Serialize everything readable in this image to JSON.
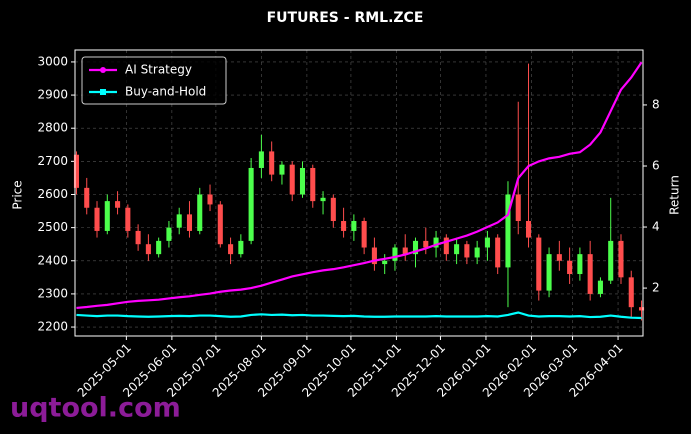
{
  "chart_data": {
    "type": "candlestick",
    "title": "FUTURES - RML.ZCE",
    "ylabel": "Price",
    "y2label": "Return",
    "watermark": "uqtool.com",
    "x": [
      "2025-03-28",
      "2025-04-04",
      "2025-04-11",
      "2025-04-18",
      "2025-04-25",
      "2025-05-02",
      "2025-05-09",
      "2025-05-16",
      "2025-05-23",
      "2025-05-30",
      "2025-06-06",
      "2025-06-13",
      "2025-06-20",
      "2025-06-27",
      "2025-07-04",
      "2025-07-11",
      "2025-07-18",
      "2025-07-25",
      "2025-08-01",
      "2025-08-08",
      "2025-08-15",
      "2025-08-22",
      "2025-08-29",
      "2025-09-05",
      "2025-09-12",
      "2025-09-19",
      "2025-09-26",
      "2025-10-03",
      "2025-10-10",
      "2025-10-17",
      "2025-10-24",
      "2025-10-31",
      "2025-11-07",
      "2025-11-14",
      "2025-11-21",
      "2025-11-28",
      "2025-12-05",
      "2025-12-12",
      "2025-12-19",
      "2025-12-26",
      "2026-01-02",
      "2026-01-09",
      "2026-01-16",
      "2026-01-23",
      "2026-01-30",
      "2026-02-06",
      "2026-02-13",
      "2026-02-20",
      "2026-02-27",
      "2026-03-06",
      "2026-03-13",
      "2026-03-20",
      "2026-03-27",
      "2026-04-03",
      "2026-04-10",
      "2026-04-17"
    ],
    "open": [
      2720,
      2620,
      2560,
      2490,
      2580,
      2560,
      2490,
      2450,
      2420,
      2460,
      2500,
      2540,
      2490,
      2600,
      2570,
      2450,
      2420,
      2460,
      2680,
      2730,
      2660,
      2690,
      2600,
      2680,
      2580,
      2590,
      2520,
      2490,
      2520,
      2440,
      2390,
      2400,
      2440,
      2420,
      2460,
      2440,
      2470,
      2420,
      2450,
      2410,
      2440,
      2470,
      2380,
      2600,
      2520,
      2470,
      2310,
      2420,
      2400,
      2360,
      2420,
      2300,
      2340,
      2460,
      2350,
      2260
    ],
    "high": [
      2730,
      2650,
      2580,
      2600,
      2610,
      2570,
      2510,
      2480,
      2470,
      2520,
      2560,
      2580,
      2620,
      2630,
      2580,
      2470,
      2480,
      2710,
      2780,
      2760,
      2700,
      2700,
      2700,
      2690,
      2610,
      2600,
      2560,
      2540,
      2530,
      2470,
      2420,
      2450,
      2480,
      2470,
      2500,
      2490,
      2480,
      2470,
      2460,
      2460,
      2490,
      2480,
      2640,
      2880,
      2995,
      2480,
      2440,
      2460,
      2440,
      2440,
      2460,
      2350,
      2590,
      2480,
      2370,
      2280
    ],
    "low": [
      2600,
      2540,
      2470,
      2480,
      2540,
      2470,
      2430,
      2400,
      2410,
      2440,
      2480,
      2470,
      2480,
      2550,
      2440,
      2390,
      2410,
      2450,
      2650,
      2640,
      2630,
      2580,
      2590,
      2560,
      2540,
      2500,
      2470,
      2460,
      2420,
      2370,
      2360,
      2370,
      2400,
      2380,
      2420,
      2410,
      2400,
      2390,
      2390,
      2390,
      2400,
      2360,
      2260,
      2480,
      2440,
      2280,
      2290,
      2370,
      2330,
      2340,
      2280,
      2290,
      2330,
      2330,
      2230,
      2220
    ],
    "close": [
      2620,
      2560,
      2490,
      2580,
      2560,
      2490,
      2450,
      2420,
      2460,
      2500,
      2540,
      2490,
      2600,
      2570,
      2450,
      2420,
      2460,
      2680,
      2730,
      2660,
      2690,
      2600,
      2680,
      2580,
      2590,
      2520,
      2490,
      2520,
      2440,
      2390,
      2400,
      2440,
      2420,
      2460,
      2440,
      2470,
      2420,
      2450,
      2410,
      2440,
      2470,
      2380,
      2600,
      2520,
      2470,
      2310,
      2420,
      2400,
      2360,
      2420,
      2300,
      2340,
      2460,
      2350,
      2260,
      2250
    ],
    "up_color": "#4cff4c",
    "down_color": "#ff4d4d",
    "series": [
      {
        "name": "AI Strategy",
        "color": "#ff00ff",
        "axis": "y2",
        "marker": "circle",
        "values": [
          1.35,
          1.38,
          1.42,
          1.45,
          1.5,
          1.55,
          1.58,
          1.6,
          1.62,
          1.66,
          1.7,
          1.73,
          1.78,
          1.82,
          1.88,
          1.92,
          1.95,
          2.0,
          2.08,
          2.18,
          2.28,
          2.38,
          2.45,
          2.52,
          2.58,
          2.62,
          2.68,
          2.75,
          2.82,
          2.9,
          2.96,
          3.02,
          3.1,
          3.2,
          3.3,
          3.42,
          3.52,
          3.62,
          3.72,
          3.85,
          4.0,
          4.15,
          4.4,
          5.6,
          6.0,
          6.15,
          6.25,
          6.3,
          6.4,
          6.45,
          6.7,
          7.1,
          7.8,
          8.5,
          8.9,
          9.4
        ]
      },
      {
        "name": "Buy-and-Hold",
        "color": "#00ffff",
        "axis": "y2",
        "marker": "square",
        "values": [
          1.12,
          1.1,
          1.08,
          1.1,
          1.1,
          1.08,
          1.07,
          1.06,
          1.07,
          1.08,
          1.09,
          1.08,
          1.1,
          1.1,
          1.08,
          1.06,
          1.07,
          1.12,
          1.14,
          1.12,
          1.13,
          1.11,
          1.12,
          1.1,
          1.1,
          1.09,
          1.08,
          1.09,
          1.07,
          1.06,
          1.06,
          1.07,
          1.07,
          1.07,
          1.07,
          1.08,
          1.07,
          1.07,
          1.07,
          1.07,
          1.08,
          1.07,
          1.12,
          1.2,
          1.1,
          1.07,
          1.08,
          1.08,
          1.07,
          1.08,
          1.05,
          1.06,
          1.1,
          1.06,
          1.03,
          1.02
        ]
      }
    ],
    "xlim": [
      "2025-03-27",
      "2026-04-18"
    ],
    "xticks": [
      "2025-05-01",
      "2025-06-01",
      "2025-07-01",
      "2025-08-01",
      "2025-09-01",
      "2025-10-01",
      "2025-11-01",
      "2025-12-01",
      "2026-01-01",
      "2026-02-01",
      "2026-03-01",
      "2026-04-01"
    ],
    "ylim": [
      2173,
      3036
    ],
    "yticks": [
      2200,
      2300,
      2400,
      2500,
      2600,
      2700,
      2800,
      2900,
      3000
    ],
    "y2lim": [
      0.43,
      9.8
    ],
    "y2ticks": [
      2,
      4,
      6,
      8
    ],
    "grid": true,
    "legend": "upper left"
  }
}
